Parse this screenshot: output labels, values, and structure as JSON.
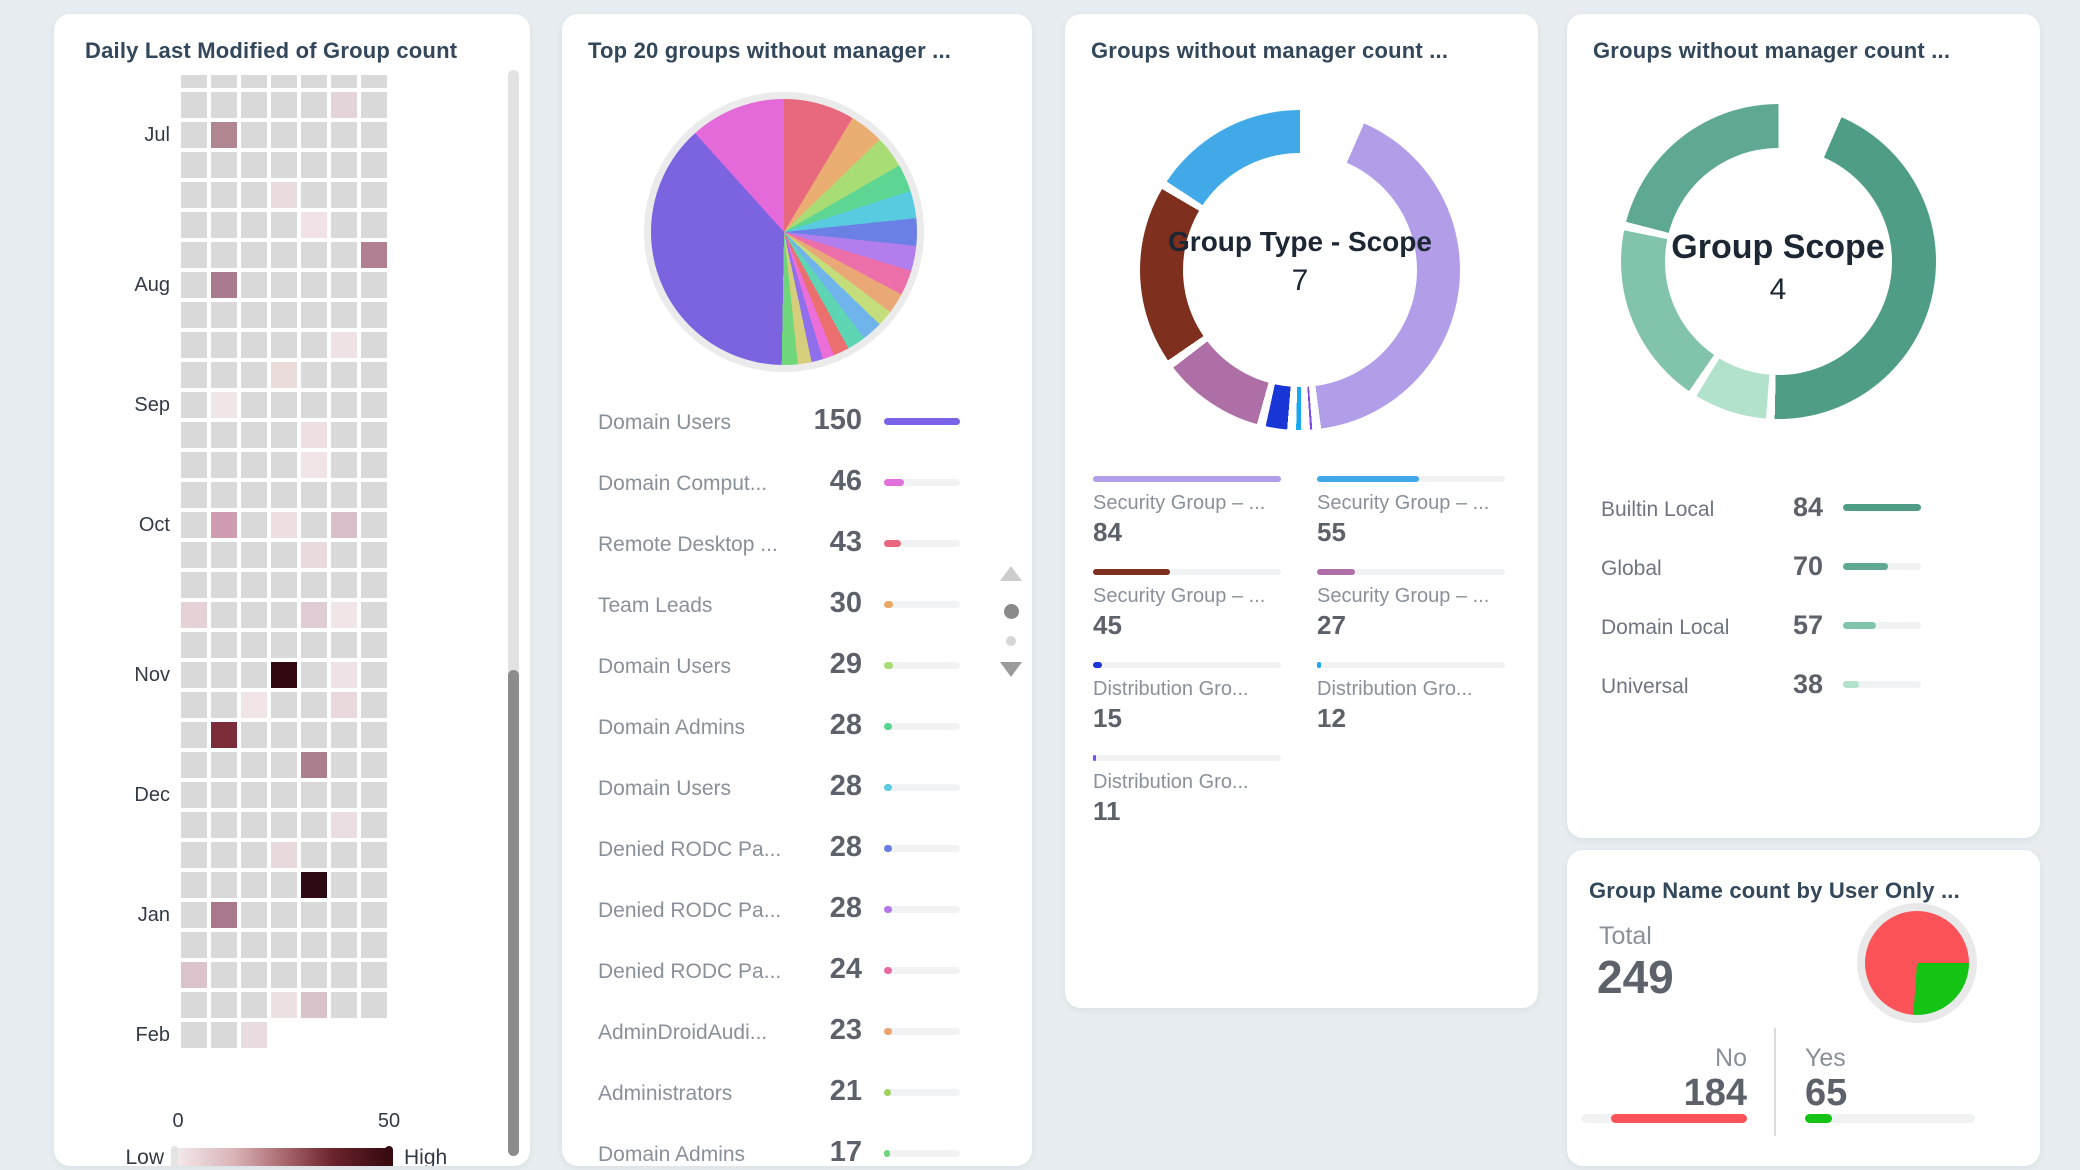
{
  "page": {
    "background": "#e7edf0"
  },
  "heatmap_card": {
    "title": "Daily Last Modified of Group count",
    "months": [
      "Jul",
      "Aug",
      "Sep",
      "Oct",
      "Nov",
      "Dec",
      "Jan",
      "Feb"
    ],
    "legend": {
      "min": "0",
      "max": "50",
      "low": "Low",
      "high": "High"
    }
  },
  "top20_card": {
    "title": "Top 20 groups without manager ...",
    "rows": [
      {
        "label": "Domain Users",
        "value": "150",
        "color": "#7b62e8",
        "pct": 100
      },
      {
        "label": "Domain Comput...",
        "value": "46",
        "color": "#e070dc",
        "pct": 26
      },
      {
        "label": "Remote Desktop ...",
        "value": "43",
        "color": "#e8697e",
        "pct": 23
      },
      {
        "label": "Team Leads",
        "value": "30",
        "color": "#eaaa66",
        "pct": 12
      },
      {
        "label": "Domain Users",
        "value": "29",
        "color": "#a8dc74",
        "pct": 12
      },
      {
        "label": "Domain Admins",
        "value": "28",
        "color": "#57d58e",
        "pct": 11
      },
      {
        "label": "Domain Users",
        "value": "28",
        "color": "#5bccdf",
        "pct": 11
      },
      {
        "label": "Denied RODC Pa...",
        "value": "28",
        "color": "#6a7de5",
        "pct": 11
      },
      {
        "label": "Denied RODC Pa...",
        "value": "28",
        "color": "#b477e8",
        "pct": 11
      },
      {
        "label": "Denied RODC Pa...",
        "value": "24",
        "color": "#e76ba2",
        "pct": 10
      },
      {
        "label": "AdminDroidAudi...",
        "value": "23",
        "color": "#eaa470",
        "pct": 10
      },
      {
        "label": "Administrators",
        "value": "21",
        "color": "#9ed45e",
        "pct": 9
      },
      {
        "label": "Domain Admins",
        "value": "17",
        "color": "#6fd67c",
        "pct": 8
      }
    ]
  },
  "type_scope_card": {
    "title": "Groups without manager count ...",
    "center_label": "Group Type - Scope",
    "center_value": "7",
    "legend_left": [
      {
        "label": "Security Group – ...",
        "value": "84",
        "color": "#b29de8",
        "pct": 100
      },
      {
        "label": "Security Group – ...",
        "value": "45",
        "color": "#7e2f1e",
        "pct": 41
      },
      {
        "label": "Distribution Gro...",
        "value": "15",
        "color": "#1937d6",
        "pct": 5
      },
      {
        "label": "Distribution Gro...",
        "value": "11",
        "color": "#7a4be8",
        "pct": 1.5
      }
    ],
    "legend_right": [
      {
        "label": "Security Group – ...",
        "value": "55",
        "color": "#41a9e8",
        "pct": 54
      },
      {
        "label": "Security Group – ...",
        "value": "27",
        "color": "#ad6fa6",
        "pct": 20
      },
      {
        "label": "Distribution Gro...",
        "value": "12",
        "color": "#18a8f0",
        "pct": 2
      }
    ]
  },
  "scope_card": {
    "title": "Groups without manager count ...",
    "center_label": "Group Scope",
    "center_value": "4",
    "rows": [
      {
        "label": "Builtin Local",
        "value": "84",
        "color": "#4f9d87",
        "pct": 100
      },
      {
        "label": "Global",
        "value": "70",
        "color": "#5fa893",
        "pct": 58
      },
      {
        "label": "Domain Local",
        "value": "57",
        "color": "#82c4ab",
        "pct": 42
      },
      {
        "label": "Universal",
        "value": "38",
        "color": "#b2e2cc",
        "pct": 21
      }
    ]
  },
  "user_only_card": {
    "title": "Group Name count by User Only ...",
    "total_label": "Total",
    "total_value": "249",
    "no_label": "No",
    "no_value": "184",
    "no_color": "#fb5358",
    "no_pct": 82,
    "yes_label": "Yes",
    "yes_value": "65",
    "yes_color": "#14c314",
    "yes_pct": 16
  },
  "chart_data": [
    {
      "type": "heatmap",
      "title": "Daily Last Modified of Group count",
      "rows": 33,
      "cols": 7,
      "default_color": "#d9d9d9",
      "month_labels": [
        "Jul",
        "Aug",
        "Sep",
        "Oct",
        "Nov",
        "Dec",
        "Jan",
        "Feb"
      ],
      "month_rows": [
        2,
        7,
        11,
        15,
        20,
        24,
        28,
        32
      ],
      "scale": {
        "min": 0,
        "max": 50,
        "low": "Low",
        "high": "High"
      },
      "last_row_cols": 3,
      "cells": [
        [
          1,
          5,
          "#e2d4d8"
        ],
        [
          2,
          1,
          "#b08691"
        ],
        [
          4,
          3,
          "#eadcde"
        ],
        [
          5,
          4,
          "#f0e2e6"
        ],
        [
          6,
          6,
          "#b27e92"
        ],
        [
          7,
          1,
          "#aa7a8e"
        ],
        [
          9,
          5,
          "#eee2e4"
        ],
        [
          10,
          3,
          "#e9dcda"
        ],
        [
          11,
          1,
          "#f0e6e8"
        ],
        [
          12,
          4,
          "#eedfe2"
        ],
        [
          13,
          4,
          "#f0e4e6"
        ],
        [
          15,
          1,
          "#cf9cb2"
        ],
        [
          15,
          3,
          "#eedee2"
        ],
        [
          15,
          5,
          "#d8bec8"
        ],
        [
          16,
          4,
          "#e8dadd"
        ],
        [
          18,
          0,
          "#e4d2d6"
        ],
        [
          18,
          4,
          "#e0ccd4"
        ],
        [
          18,
          5,
          "#f0e6e8"
        ],
        [
          20,
          3,
          "#330911"
        ],
        [
          20,
          5,
          "#eee2e6"
        ],
        [
          21,
          2,
          "#f0e4e6"
        ],
        [
          21,
          5,
          "#e8d8dc"
        ],
        [
          22,
          1,
          "#7b2d3a"
        ],
        [
          23,
          4,
          "#ab7f8e"
        ],
        [
          25,
          5,
          "#eadee2"
        ],
        [
          26,
          3,
          "#e8dadc"
        ],
        [
          27,
          4,
          "#2e0a12"
        ],
        [
          28,
          1,
          "#a9788c"
        ],
        [
          30,
          0,
          "#dcc2ca"
        ],
        [
          31,
          3,
          "#ece2e2"
        ],
        [
          31,
          4,
          "#d8c3ca"
        ],
        [
          32,
          2,
          "#e8dce0"
        ]
      ]
    },
    {
      "type": "pie",
      "title": "Top 20 groups without manager ...",
      "categories": [
        "Domain Users",
        "Domain Comput...",
        "Remote Desktop ...",
        "Team Leads",
        "Domain Users",
        "Domain Admins",
        "Domain Users",
        "Denied RODC Pa...",
        "Denied RODC Pa...",
        "Denied RODC Pa...",
        "AdminDroidAudi...",
        "Administrators",
        "Domain Admins"
      ],
      "values": [
        150,
        46,
        43,
        30,
        29,
        28,
        28,
        28,
        28,
        24,
        23,
        21,
        17
      ],
      "arcs": [
        {
          "color": "#e8697e",
          "deg": 31
        },
        {
          "color": "#eaae72",
          "deg": 15
        },
        {
          "color": "#a8dc74",
          "deg": 14
        },
        {
          "color": "#5dd593",
          "deg": 12
        },
        {
          "color": "#59cbe0",
          "deg": 12
        },
        {
          "color": "#6b80e5",
          "deg": 12
        },
        {
          "color": "#b27ded",
          "deg": 11
        },
        {
          "color": "#ec6fa9",
          "deg": 11
        },
        {
          "color": "#eaa877",
          "deg": 9
        },
        {
          "color": "#c4de7c",
          "deg": 7
        },
        {
          "color": "#6fb5ec",
          "deg": 9
        },
        {
          "color": "#5fd6b3",
          "deg": 8
        },
        {
          "color": "#ec6f6f",
          "deg": 7
        },
        {
          "color": "#ec6fd9",
          "deg": 5
        },
        {
          "color": "#8f6fec",
          "deg": 5
        },
        {
          "color": "#d6ce7a",
          "deg": 6
        },
        {
          "color": "#6fd67c",
          "deg": 7
        },
        {
          "color": "#7c64e0",
          "deg": 137
        },
        {
          "color": "#e56ad9",
          "deg": 42
        }
      ]
    },
    {
      "type": "donut",
      "title": "Group Type - Scope",
      "center_count": 7,
      "categories": [
        "Security Group – ...",
        "Security Group – ...",
        "Security Group – ...",
        "Security Group – ...",
        "Distribution Gro...",
        "Distribution Gro...",
        "Distribution Gro..."
      ],
      "values": [
        84,
        55,
        45,
        27,
        15,
        12,
        11
      ],
      "start_deg": 22,
      "arcs": [
        {
          "color": "#b29de8",
          "deg": 152
        },
        {
          "color": "#7a4be8",
          "deg": 4
        },
        {
          "color": "#18a8f0",
          "deg": 5
        },
        {
          "color": "#1937d6",
          "deg": 11
        },
        {
          "color": "#ad6fa6",
          "deg": 40
        },
        {
          "color": "#7e2f1e",
          "deg": 68
        },
        {
          "color": "#41a9e8",
          "deg": 80
        }
      ]
    },
    {
      "type": "donut",
      "title": "Group Scope",
      "center_count": 4,
      "categories": [
        "Builtin Local",
        "Global",
        "Domain Local",
        "Universal"
      ],
      "values": [
        84,
        70,
        57,
        38
      ],
      "start_deg": 22,
      "arcs": [
        {
          "color": "#4f9d87",
          "deg": 161
        },
        {
          "color": "#b2e2cc",
          "deg": 30
        },
        {
          "color": "#82c4ab",
          "deg": 70
        },
        {
          "color": "#5fa893",
          "deg": 99
        }
      ]
    },
    {
      "type": "pie",
      "title": "Group Name count by User Only ...",
      "categories": [
        "No",
        "Yes"
      ],
      "values": [
        184,
        65
      ],
      "total": 249,
      "arcs": [
        {
          "color": "#14c314",
          "deg": 94,
          "from": 90
        },
        {
          "color": "#fb5358",
          "deg": 266
        }
      ]
    }
  ]
}
